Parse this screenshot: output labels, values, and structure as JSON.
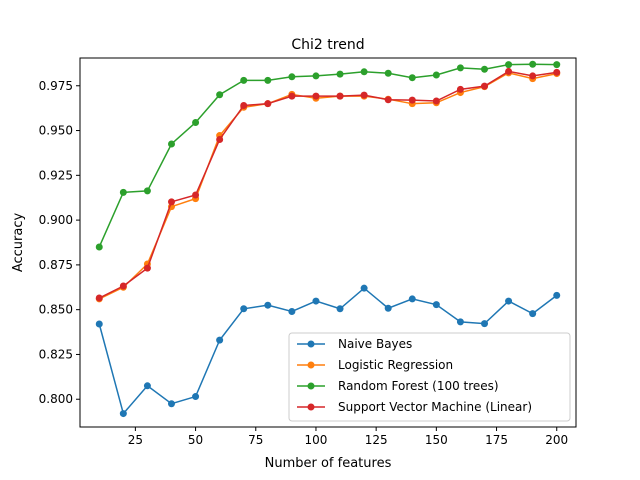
{
  "chart_data": {
    "type": "line",
    "title": "Chi2 trend",
    "xlabel": "Number of features",
    "ylabel": "Accuracy",
    "xlim": [
      2,
      208
    ],
    "ylim": [
      0.7845,
      0.9905
    ],
    "xticks": [
      25,
      50,
      75,
      100,
      125,
      150,
      175,
      200
    ],
    "xtick_labels": [
      "25",
      "50",
      "75",
      "100",
      "125",
      "150",
      "175",
      "200"
    ],
    "yticks": [
      0.8,
      0.825,
      0.85,
      0.875,
      0.9,
      0.925,
      0.95,
      0.975
    ],
    "ytick_labels": [
      "0.800",
      "0.825",
      "0.850",
      "0.875",
      "0.900",
      "0.925",
      "0.950",
      "0.975"
    ],
    "grid": false,
    "legend_position": "lower-right",
    "x": [
      10,
      20,
      30,
      40,
      50,
      60,
      70,
      80,
      90,
      100,
      110,
      120,
      130,
      140,
      150,
      160,
      170,
      180,
      190,
      200
    ],
    "series": [
      {
        "name": "Naive Bayes",
        "color": "#1f77b4",
        "values": [
          0.842,
          0.792,
          0.8075,
          0.7975,
          0.8015,
          0.833,
          0.8505,
          0.8525,
          0.849,
          0.8548,
          0.8505,
          0.862,
          0.8508,
          0.856,
          0.8528,
          0.8432,
          0.8422,
          0.8548,
          0.8478,
          0.858
        ]
      },
      {
        "name": "Logistic Regression",
        "color": "#ff7f0e",
        "values": [
          0.856,
          0.8625,
          0.8755,
          0.9075,
          0.912,
          0.9472,
          0.963,
          0.965,
          0.9702,
          0.968,
          0.9692,
          0.9692,
          0.9675,
          0.965,
          0.9655,
          0.9712,
          0.9745,
          0.9822,
          0.979,
          0.9818
        ]
      },
      {
        "name": "Random Forest (100 trees)",
        "color": "#2ca02c",
        "values": [
          0.885,
          0.9155,
          0.9163,
          0.9425,
          0.9545,
          0.97,
          0.978,
          0.978,
          0.98,
          0.9805,
          0.9815,
          0.9828,
          0.982,
          0.9795,
          0.981,
          0.985,
          0.9842,
          0.9868,
          0.987,
          0.9868
        ]
      },
      {
        "name": "Support Vector Machine (Linear)",
        "color": "#d62728",
        "values": [
          0.8565,
          0.8632,
          0.8732,
          0.9102,
          0.914,
          0.945,
          0.964,
          0.965,
          0.9692,
          0.9692,
          0.9692,
          0.9698,
          0.9672,
          0.967,
          0.9665,
          0.973,
          0.9748,
          0.983,
          0.9805,
          0.9825
        ]
      }
    ]
  }
}
